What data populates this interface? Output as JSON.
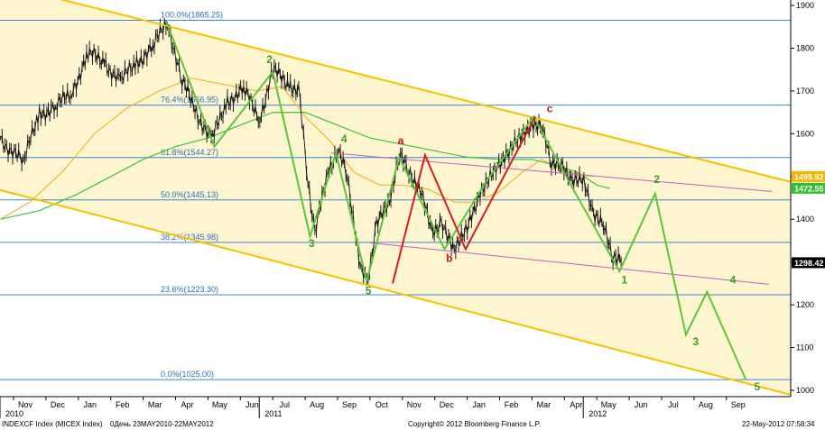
{
  "chart_data": {
    "type": "line",
    "instrument": "INDEXCF Index (MICEX Index)",
    "frequency_label": "0День 23MAY2010-22MAY2012",
    "copyright": "Copyright© 2012 Bloomberg Finance L.P.",
    "timestamp": "22-May-2012 07:58:34",
    "ylim": [
      1000,
      1900
    ],
    "y_ticks": [
      "1000",
      "1100",
      "1200",
      "1300",
      "1400",
      "1500",
      "1600",
      "1700",
      "1800",
      "1900"
    ],
    "x_months": [
      {
        "label": "Nov",
        "year": "2010",
        "t": 0.0
      },
      {
        "label": "Dec",
        "t": 1.0
      },
      {
        "label": "Jan",
        "t": 2.0
      },
      {
        "label": "Feb",
        "t": 3.0
      },
      {
        "label": "Mar",
        "t": 4.0
      },
      {
        "label": "Apr",
        "t": 5.0
      },
      {
        "label": "May",
        "t": 6.0
      },
      {
        "label": "Jun",
        "t": 7.0
      },
      {
        "label": "Jul",
        "year": "2011",
        "t": 8.0
      },
      {
        "label": "Aug",
        "t": 9.0
      },
      {
        "label": "Sep",
        "t": 10.0
      },
      {
        "label": "Oct",
        "t": 11.0
      },
      {
        "label": "Nov",
        "t": 12.0
      },
      {
        "label": "Dec",
        "t": 13.0
      },
      {
        "label": "Jan",
        "t": 14.0
      },
      {
        "label": "Feb",
        "t": 15.0
      },
      {
        "label": "Mar",
        "t": 16.0
      },
      {
        "label": "Apr",
        "t": 17.0
      },
      {
        "label": "May",
        "year": "2012",
        "t": 18.0
      },
      {
        "label": "Jun",
        "t": 19.0
      },
      {
        "label": "Jul",
        "t": 20.0
      },
      {
        "label": "Aug",
        "t": 21.0
      },
      {
        "label": "Sep",
        "t": 22.0
      }
    ],
    "fib_levels": [
      {
        "label": "100.0%(1865.25)",
        "value": 1865.25
      },
      {
        "label": "76.4%(1666.95)",
        "value": 1666.95
      },
      {
        "label": "61.8%(1544.27)",
        "value": 1544.27
      },
      {
        "label": "50.0%(1445.13)",
        "value": 1445.13
      },
      {
        "label": "38.2%(1345.98)",
        "value": 1345.98
      },
      {
        "label": "23.6%(1223.30)",
        "value": 1223.3
      },
      {
        "label": "0.0%(1025.00)",
        "value": 1025.0
      }
    ],
    "price_tags": [
      {
        "label": "1499.92",
        "value": 1499.92,
        "color": "#f5b400"
      },
      {
        "label": "1472.55",
        "value": 1472.55,
        "color": "#2fbf2f"
      },
      {
        "label": "1298.42",
        "value": 1298.42,
        "color": "#000000"
      }
    ],
    "channel_lines": [
      {
        "points": [
          [
            2.2,
            1900
          ],
          [
            22.9,
            1508
          ]
        ]
      },
      {
        "points": [
          [
            -0.4,
            1468
          ],
          [
            23.2,
            1005
          ]
        ]
      }
    ],
    "purple_lines": [
      {
        "points": [
          [
            9.8,
            1555
          ],
          [
            23.4,
            1465
          ]
        ]
      },
      {
        "points": [
          [
            11.0,
            1345
          ],
          [
            23.3,
            1248
          ]
        ]
      }
    ],
    "green_wave": [
      [
        4.7,
        1865
      ],
      [
        6.2,
        1570
      ],
      [
        8.0,
        1745
      ],
      [
        9.15,
        1360
      ],
      [
        9.95,
        1555
      ],
      [
        10.9,
        1255
      ],
      [
        11.9,
        1545
      ],
      [
        13.3,
        1330
      ],
      [
        14.6,
        1490
      ],
      [
        16.05,
        1640
      ],
      [
        17.2,
        1480
      ],
      [
        18.7,
        1278
      ],
      [
        19.8,
        1460
      ],
      [
        20.75,
        1130
      ],
      [
        21.4,
        1230
      ],
      [
        22.6,
        1025
      ]
    ],
    "red_wave": [
      [
        11.7,
        1250
      ],
      [
        12.7,
        1550
      ],
      [
        13.95,
        1330
      ],
      [
        16.1,
        1640
      ]
    ],
    "wave_labels": [
      {
        "text": "2",
        "t": 7.9,
        "v": 1765,
        "color": "#3aa02a"
      },
      {
        "text": "3",
        "t": 9.2,
        "v": 1335,
        "color": "#3aa02a"
      },
      {
        "text": "4",
        "t": 10.2,
        "v": 1580,
        "color": "#3aa02a"
      },
      {
        "text": "5",
        "t": 10.95,
        "v": 1225,
        "color": "#3aa02a"
      },
      {
        "text": "a",
        "t": 11.95,
        "v": 1575,
        "color": "#cc1111"
      },
      {
        "text": "b",
        "t": 13.45,
        "v": 1300,
        "color": "#cc1111"
      },
      {
        "text": "c",
        "t": 16.55,
        "v": 1650,
        "color": "#cc1111"
      },
      {
        "text": "1",
        "t": 18.85,
        "v": 1250,
        "color": "#3aa02a"
      },
      {
        "text": "2",
        "t": 19.85,
        "v": 1485,
        "color": "#3aa02a"
      },
      {
        "text": "3",
        "t": 21.05,
        "v": 1105,
        "color": "#3aa02a"
      },
      {
        "text": "4",
        "t": 22.2,
        "v": 1250,
        "color": "#3aa02a"
      },
      {
        "text": "5",
        "t": 22.95,
        "v": 1000,
        "color": "#3aa02a"
      }
    ],
    "price_path": [
      [
        -0.4,
        1590
      ],
      [
        0.3,
        1530
      ],
      [
        0.8,
        1650
      ],
      [
        1.3,
        1660
      ],
      [
        1.8,
        1700
      ],
      [
        2.3,
        1785
      ],
      [
        2.8,
        1770
      ],
      [
        3.3,
        1720
      ],
      [
        3.8,
        1770
      ],
      [
        4.3,
        1800
      ],
      [
        4.75,
        1865
      ],
      [
        5.2,
        1720
      ],
      [
        5.6,
        1660
      ],
      [
        6.1,
        1580
      ],
      [
        6.6,
        1680
      ],
      [
        7.1,
        1700
      ],
      [
        7.6,
        1640
      ],
      [
        8.0,
        1745
      ],
      [
        8.5,
        1720
      ],
      [
        8.8,
        1700
      ],
      [
        9.0,
        1550
      ],
      [
        9.3,
        1360
      ],
      [
        9.7,
        1520
      ],
      [
        10.0,
        1555
      ],
      [
        10.3,
        1510
      ],
      [
        10.7,
        1280
      ],
      [
        10.9,
        1255
      ],
      [
        11.2,
        1380
      ],
      [
        11.6,
        1450
      ],
      [
        11.9,
        1545
      ],
      [
        12.2,
        1520
      ],
      [
        12.6,
        1450
      ],
      [
        12.9,
        1380
      ],
      [
        13.2,
        1380
      ],
      [
        13.6,
        1340
      ],
      [
        14.0,
        1370
      ],
      [
        14.4,
        1470
      ],
      [
        14.8,
        1500
      ],
      [
        15.2,
        1560
      ],
      [
        15.6,
        1580
      ],
      [
        16.0,
        1630
      ],
      [
        16.3,
        1610
      ],
      [
        16.6,
        1540
      ],
      [
        16.9,
        1520
      ],
      [
        17.2,
        1500
      ],
      [
        17.6,
        1480
      ],
      [
        17.9,
        1420
      ],
      [
        18.2,
        1380
      ],
      [
        18.5,
        1320
      ],
      [
        18.75,
        1298
      ]
    ],
    "ma_short": [
      [
        -0.4,
        1400
      ],
      [
        0.5,
        1440
      ],
      [
        1.5,
        1510
      ],
      [
        2.5,
        1600
      ],
      [
        3.5,
        1660
      ],
      [
        4.5,
        1700
      ],
      [
        5.5,
        1730
      ],
      [
        6.5,
        1715
      ],
      [
        7.5,
        1700
      ],
      [
        8.3,
        1710
      ],
      [
        9.0,
        1640
      ],
      [
        9.8,
        1580
      ],
      [
        10.5,
        1510
      ],
      [
        11.3,
        1480
      ],
      [
        12.0,
        1480
      ],
      [
        12.8,
        1470
      ],
      [
        13.6,
        1440
      ],
      [
        14.3,
        1440
      ],
      [
        15.0,
        1465
      ],
      [
        15.7,
        1510
      ],
      [
        16.3,
        1540
      ],
      [
        16.8,
        1520
      ],
      [
        17.4,
        1505
      ],
      [
        17.9,
        1500
      ]
    ],
    "ma_long": [
      [
        -0.4,
        1400
      ],
      [
        0.8,
        1420
      ],
      [
        2.0,
        1460
      ],
      [
        3.0,
        1500
      ],
      [
        4.0,
        1540
      ],
      [
        5.0,
        1570
      ],
      [
        6.0,
        1590
      ],
      [
        7.0,
        1620
      ],
      [
        8.0,
        1650
      ],
      [
        9.0,
        1650
      ],
      [
        10.0,
        1620
      ],
      [
        11.0,
        1590
      ],
      [
        12.0,
        1575
      ],
      [
        13.0,
        1560
      ],
      [
        14.0,
        1545
      ],
      [
        15.0,
        1540
      ],
      [
        16.0,
        1540
      ],
      [
        16.8,
        1525
      ],
      [
        17.4,
        1510
      ],
      [
        18.0,
        1480
      ],
      [
        18.4,
        1472
      ]
    ]
  }
}
